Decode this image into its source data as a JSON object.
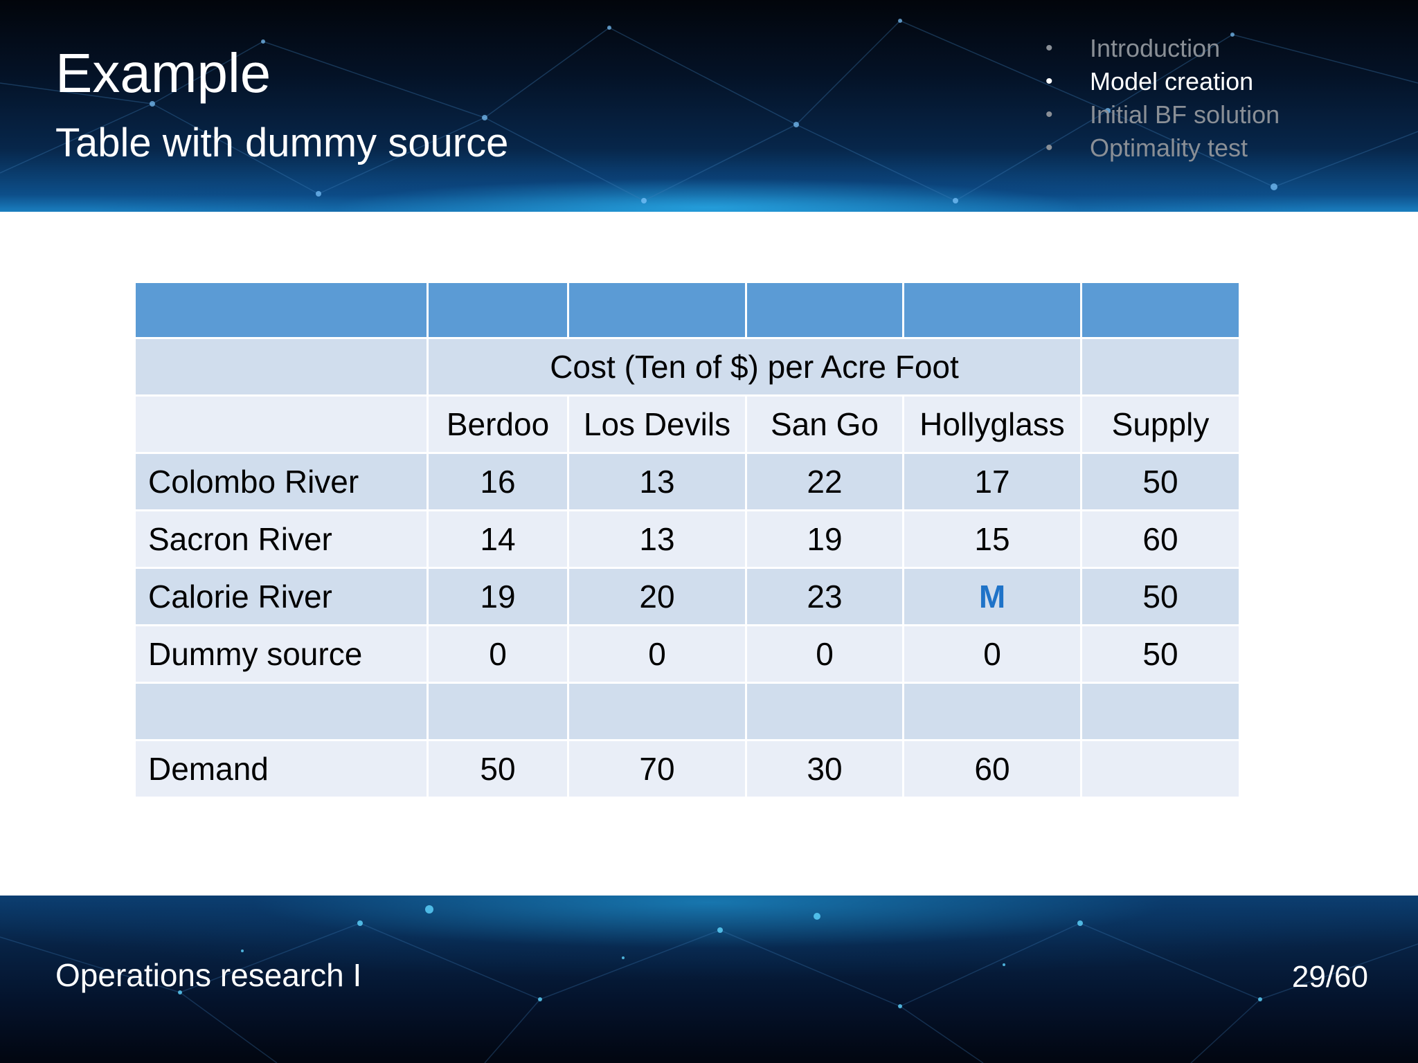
{
  "header": {
    "title": "Example",
    "subtitle": "Table with dummy source"
  },
  "nav": {
    "items": [
      {
        "label": "Introduction",
        "active": false
      },
      {
        "label": "Model creation",
        "active": true
      },
      {
        "label": "Initial BF solution",
        "active": false
      },
      {
        "label": "Optimality test",
        "active": false
      }
    ],
    "bullet": "•"
  },
  "table": {
    "group_header": "Cost (Ten of $) per Acre Foot",
    "columns": [
      "Berdoo",
      "Los Devils",
      "San Go",
      "Hollyglass",
      "Supply"
    ],
    "rows": [
      {
        "label": "Colombo River",
        "values": [
          "16",
          "13",
          "22",
          "17",
          "50"
        ]
      },
      {
        "label": "Sacron River",
        "values": [
          "14",
          "13",
          "19",
          "15",
          "60"
        ]
      },
      {
        "label": "Calorie River",
        "values": [
          "19",
          "20",
          "23",
          "M",
          "50"
        ]
      },
      {
        "label": "Dummy source",
        "values": [
          "0",
          "0",
          "0",
          "0",
          "50"
        ]
      }
    ],
    "demand": {
      "label": "Demand",
      "values": [
        "50",
        "70",
        "30",
        "60",
        ""
      ]
    },
    "colors": {
      "header_row": "#5b9bd5",
      "band_dark": "#d0dded",
      "band_light": "#e9eef7",
      "big_m": "#1f73c8"
    }
  },
  "footer": {
    "course": "Operations research I",
    "page": "29/60"
  }
}
